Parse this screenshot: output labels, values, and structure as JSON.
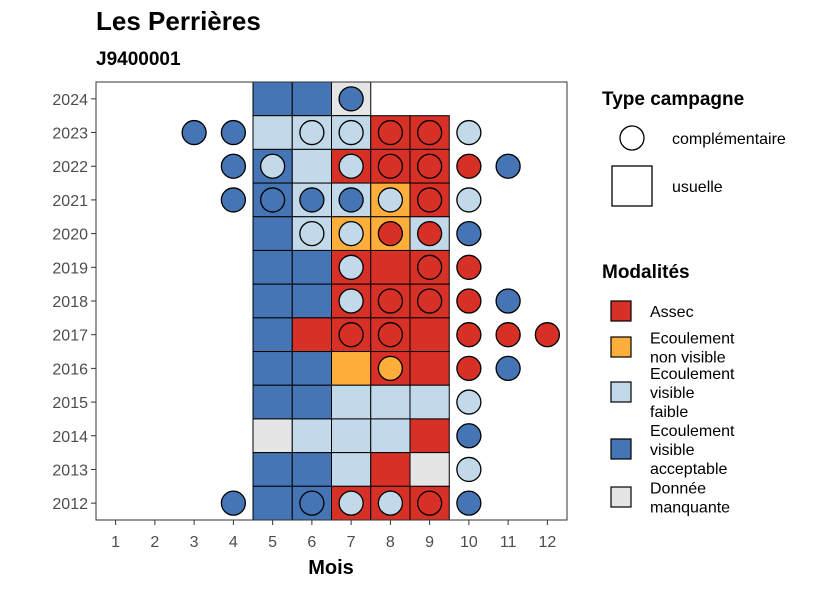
{
  "chart_data": {
    "type": "heatmap",
    "title": "Les Perrières",
    "subtitle": "J9400001",
    "xlabel": "Mois",
    "ylabel": "",
    "x_ticks": [
      1,
      2,
      3,
      4,
      5,
      6,
      7,
      8,
      9,
      10,
      11,
      12
    ],
    "y_ticks": [
      2012,
      2013,
      2014,
      2015,
      2016,
      2017,
      2018,
      2019,
      2020,
      2021,
      2022,
      2023,
      2024
    ],
    "xlim": [
      0.5,
      12.5
    ],
    "ylim": [
      2011.5,
      2024.5
    ],
    "grid": false,
    "legend_position": "right",
    "colors": {
      "Assec": "#d73027",
      "Ecoulement non visible": "#fdae3b",
      "Ecoulement visible faible": "#c1d9e8",
      "Ecoulement visible acceptable": "#4575b4",
      "Donnée manquante": "#e5e5e5"
    },
    "legend_campaign": {
      "title": "Type campagne",
      "entries": [
        {
          "label": "complémentaire",
          "shape": "circle"
        },
        {
          "label": "usuelle",
          "shape": "square"
        }
      ]
    },
    "legend_modalities": {
      "title": "Modalités",
      "entries": [
        {
          "key": "Assec",
          "lines": [
            "Assec"
          ]
        },
        {
          "key": "Ecoulement non visible",
          "lines": [
            "Ecoulement",
            "non visible"
          ]
        },
        {
          "key": "Ecoulement visible faible",
          "lines": [
            "Ecoulement",
            "visible",
            "faible"
          ]
        },
        {
          "key": "Ecoulement visible acceptable",
          "lines": [
            "Ecoulement",
            "visible",
            "acceptable"
          ]
        },
        {
          "key": "Donnée manquante",
          "lines": [
            "Donnée",
            "manquante"
          ]
        }
      ]
    },
    "usual": [
      {
        "year": 2024,
        "months": [
          "Ecoulement visible acceptable",
          "Ecoulement visible acceptable",
          "Donnée manquante",
          null,
          null
        ]
      },
      {
        "year": 2023,
        "months": [
          "Ecoulement visible faible",
          "Ecoulement visible faible",
          "Ecoulement visible faible",
          "Assec",
          "Assec"
        ]
      },
      {
        "year": 2022,
        "months": [
          "Ecoulement visible acceptable",
          "Ecoulement visible faible",
          "Assec",
          "Assec",
          "Assec"
        ]
      },
      {
        "year": 2021,
        "months": [
          "Ecoulement visible acceptable",
          "Ecoulement visible faible",
          "Ecoulement visible faible",
          "Ecoulement non visible",
          "Assec"
        ]
      },
      {
        "year": 2020,
        "months": [
          "Ecoulement visible acceptable",
          "Ecoulement visible faible",
          "Ecoulement non visible",
          "Ecoulement non visible",
          "Ecoulement visible faible"
        ]
      },
      {
        "year": 2019,
        "months": [
          "Ecoulement visible acceptable",
          "Ecoulement visible acceptable",
          "Assec",
          "Assec",
          "Assec"
        ]
      },
      {
        "year": 2018,
        "months": [
          "Ecoulement visible acceptable",
          "Ecoulement visible acceptable",
          "Assec",
          "Assec",
          "Assec"
        ]
      },
      {
        "year": 2017,
        "months": [
          "Ecoulement visible acceptable",
          "Assec",
          "Assec",
          "Assec",
          "Assec"
        ]
      },
      {
        "year": 2016,
        "months": [
          "Ecoulement visible acceptable",
          "Ecoulement visible acceptable",
          "Ecoulement non visible",
          "Assec",
          "Assec"
        ]
      },
      {
        "year": 2015,
        "months": [
          "Ecoulement visible acceptable",
          "Ecoulement visible acceptable",
          "Ecoulement visible faible",
          "Ecoulement visible faible",
          "Ecoulement visible faible"
        ]
      },
      {
        "year": 2014,
        "months": [
          "Donnée manquante",
          "Ecoulement visible faible",
          "Ecoulement visible faible",
          "Ecoulement visible faible",
          "Assec"
        ]
      },
      {
        "year": 2013,
        "months": [
          "Ecoulement visible acceptable",
          "Ecoulement visible acceptable",
          "Ecoulement visible faible",
          "Assec",
          "Donnée manquante"
        ]
      },
      {
        "year": 2012,
        "months": [
          "Ecoulement visible acceptable",
          "Ecoulement visible acceptable",
          "Assec",
          "Assec",
          "Assec"
        ]
      }
    ],
    "usual_first_month": 5,
    "complementary": [
      {
        "year": 2024,
        "month": 7,
        "value": "Ecoulement visible acceptable"
      },
      {
        "year": 2023,
        "month": 3,
        "value": "Ecoulement visible acceptable"
      },
      {
        "year": 2023,
        "month": 4,
        "value": "Ecoulement visible acceptable"
      },
      {
        "year": 2023,
        "month": 6,
        "value": "Ecoulement visible faible"
      },
      {
        "year": 2023,
        "month": 7,
        "value": "Ecoulement visible faible"
      },
      {
        "year": 2023,
        "month": 8,
        "value": "Assec"
      },
      {
        "year": 2023,
        "month": 9,
        "value": "Assec"
      },
      {
        "year": 2023,
        "month": 10,
        "value": "Ecoulement visible faible"
      },
      {
        "year": 2022,
        "month": 4,
        "value": "Ecoulement visible acceptable"
      },
      {
        "year": 2022,
        "month": 5,
        "value": "Ecoulement visible faible"
      },
      {
        "year": 2022,
        "month": 7,
        "value": "Ecoulement visible faible"
      },
      {
        "year": 2022,
        "month": 8,
        "value": "Assec"
      },
      {
        "year": 2022,
        "month": 9,
        "value": "Assec"
      },
      {
        "year": 2022,
        "month": 10,
        "value": "Assec"
      },
      {
        "year": 2022,
        "month": 11,
        "value": "Ecoulement visible acceptable"
      },
      {
        "year": 2021,
        "month": 4,
        "value": "Ecoulement visible acceptable"
      },
      {
        "year": 2021,
        "month": 5,
        "value": "Ecoulement visible acceptable"
      },
      {
        "year": 2021,
        "month": 6,
        "value": "Ecoulement visible acceptable"
      },
      {
        "year": 2021,
        "month": 7,
        "value": "Ecoulement visible acceptable"
      },
      {
        "year": 2021,
        "month": 8,
        "value": "Ecoulement visible faible"
      },
      {
        "year": 2021,
        "month": 9,
        "value": "Assec"
      },
      {
        "year": 2021,
        "month": 10,
        "value": "Ecoulement visible faible"
      },
      {
        "year": 2020,
        "month": 6,
        "value": "Ecoulement visible faible"
      },
      {
        "year": 2020,
        "month": 7,
        "value": "Ecoulement visible faible"
      },
      {
        "year": 2020,
        "month": 8,
        "value": "Assec"
      },
      {
        "year": 2020,
        "month": 9,
        "value": "Assec"
      },
      {
        "year": 2020,
        "month": 10,
        "value": "Ecoulement visible acceptable"
      },
      {
        "year": 2019,
        "month": 7,
        "value": "Ecoulement visible faible"
      },
      {
        "year": 2019,
        "month": 9,
        "value": "Assec"
      },
      {
        "year": 2019,
        "month": 10,
        "value": "Assec"
      },
      {
        "year": 2018,
        "month": 7,
        "value": "Ecoulement visible faible"
      },
      {
        "year": 2018,
        "month": 8,
        "value": "Assec"
      },
      {
        "year": 2018,
        "month": 9,
        "value": "Assec"
      },
      {
        "year": 2018,
        "month": 10,
        "value": "Assec"
      },
      {
        "year": 2018,
        "month": 11,
        "value": "Ecoulement visible acceptable"
      },
      {
        "year": 2017,
        "month": 7,
        "value": "Assec"
      },
      {
        "year": 2017,
        "month": 8,
        "value": "Assec"
      },
      {
        "year": 2017,
        "month": 10,
        "value": "Assec"
      },
      {
        "year": 2017,
        "month": 11,
        "value": "Assec"
      },
      {
        "year": 2017,
        "month": 12,
        "value": "Assec"
      },
      {
        "year": 2016,
        "month": 8,
        "value": "Ecoulement non visible"
      },
      {
        "year": 2016,
        "month": 10,
        "value": "Assec"
      },
      {
        "year": 2016,
        "month": 11,
        "value": "Ecoulement visible acceptable"
      },
      {
        "year": 2015,
        "month": 10,
        "value": "Ecoulement visible faible"
      },
      {
        "year": 2014,
        "month": 10,
        "value": "Ecoulement visible acceptable"
      },
      {
        "year": 2013,
        "month": 10,
        "value": "Ecoulement visible faible"
      },
      {
        "year": 2012,
        "month": 4,
        "value": "Ecoulement visible acceptable"
      },
      {
        "year": 2012,
        "month": 6,
        "value": "Ecoulement visible acceptable"
      },
      {
        "year": 2012,
        "month": 7,
        "value": "Ecoulement visible faible"
      },
      {
        "year": 2012,
        "month": 8,
        "value": "Ecoulement visible faible"
      },
      {
        "year": 2012,
        "month": 9,
        "value": "Assec"
      },
      {
        "year": 2012,
        "month": 10,
        "value": "Ecoulement visible acceptable"
      }
    ]
  }
}
